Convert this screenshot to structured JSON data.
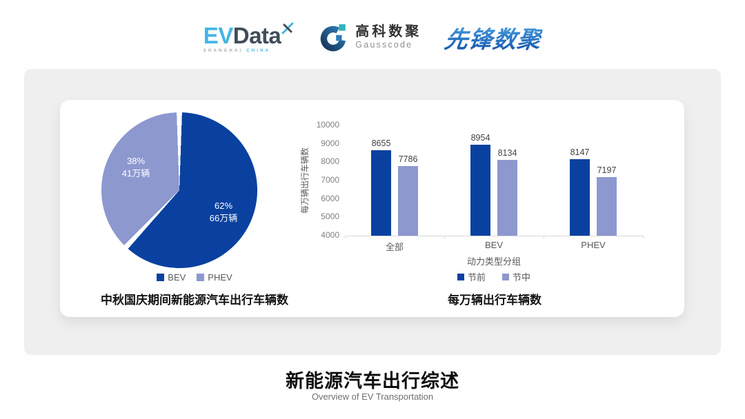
{
  "header": {
    "evdata": {
      "part1": "EV",
      "part2": "Data",
      "sub1": "SHANGHAI",
      "sub2": "CHINA"
    },
    "gausscode": {
      "name_cn": "高科数聚",
      "name_en": "Gausscode"
    },
    "pioneer": {
      "name": "先锋数聚"
    }
  },
  "chart_data": [
    {
      "type": "pie",
      "title": "中秋国庆期间新能源汽车出行车辆数",
      "start_angle": "top-clockwise",
      "legend_position": "bottom",
      "slices": [
        {
          "label": "BEV",
          "pct": 62,
          "pct_label": "62%",
          "amount_label": "66万辆",
          "color": "#0a41a0"
        },
        {
          "label": "PHEV",
          "pct": 38,
          "pct_label": "38%",
          "amount_label": "41万辆",
          "color": "#8d98cf"
        }
      ]
    },
    {
      "type": "bar",
      "title": "每万辆出行车辆数",
      "categories": [
        "全部",
        "BEV",
        "PHEV"
      ],
      "series": [
        {
          "name": "节前",
          "values": [
            8655,
            8954,
            8147
          ],
          "color": "#0a41a0"
        },
        {
          "name": "节中",
          "values": [
            7786,
            8134,
            7197
          ],
          "color": "#8d98cf"
        }
      ],
      "xlabel": "动力类型分组",
      "ylabel": "每万辆出行车辆数",
      "ylim": [
        4000,
        10000
      ],
      "ytick_step": 1000,
      "grid": false,
      "legend_position": "bottom"
    }
  ],
  "footer": {
    "title": "新能源汽车出行综述",
    "subtitle": "Overview of EV Transportation"
  }
}
